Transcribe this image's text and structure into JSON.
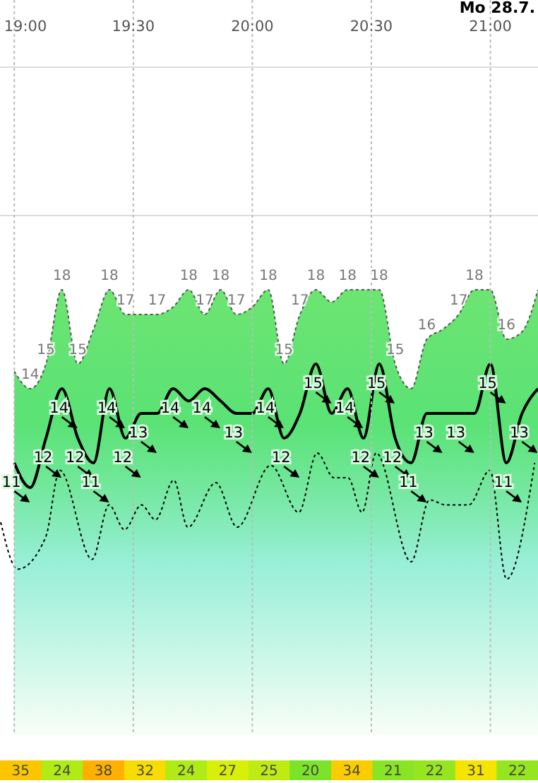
{
  "chart_data": [
    {
      "type": "area",
      "annotations": [
        "Mo 28.7."
      ],
      "xlim": [
        18.94,
        21.2
      ],
      "xticks": [
        {
          "value": 19,
          "label": "19:00"
        },
        {
          "value": 19.5,
          "label": "19:30"
        },
        {
          "value": 20,
          "label": "20:00"
        },
        {
          "value": 20.5,
          "label": "20:30"
        },
        {
          "value": 21,
          "label": "21:00"
        }
      ],
      "yticks": [
        {
          "value": 21,
          "label": null
        },
        {
          "value": 27,
          "label": null
        }
      ],
      "grid": true,
      "tick_labels": "x",
      "series": [
        {
          "type": "area",
          "color": "#8ee86a",
          "line_style": "dotted",
          "x": [
            19,
            19.067,
            19.133,
            19.2,
            19.267,
            19.333,
            19.4,
            19.467,
            19.533,
            19.6,
            19.667,
            19.733,
            19.8,
            19.867,
            19.933,
            20,
            20.067,
            20.133,
            20.2,
            20.267,
            20.333,
            20.4,
            20.467,
            20.533,
            20.6,
            20.667,
            20.733,
            20.8,
            20.867,
            20.933,
            21,
            21.067,
            21.133,
            21.2
          ],
          "values": [
            14.7,
            14,
            15,
            18,
            15,
            16.4,
            18,
            17,
            17,
            17,
            17.3,
            18,
            17,
            18,
            17,
            17.3,
            18,
            15,
            17,
            18,
            17.5,
            18,
            18,
            18,
            15,
            14,
            16,
            16.4,
            17,
            18,
            18,
            16,
            16.3,
            18
          ],
          "value_labels": [
            null,
            "14",
            "15",
            "18",
            "15",
            null,
            "18",
            "17",
            null,
            "17",
            null,
            "18",
            "17",
            "18",
            "17",
            null,
            "18",
            "15",
            "17",
            "18",
            null,
            "18",
            null,
            "18",
            "15",
            null,
            "16",
            null,
            "17",
            "18",
            null,
            "16",
            null,
            null
          ]
        },
        {
          "type": "line",
          "color": "#000000",
          "line_style": "solid",
          "x": [
            19,
            19.067,
            19.133,
            19.2,
            19.267,
            19.333,
            19.4,
            19.467,
            19.533,
            19.6,
            19.667,
            19.733,
            19.8,
            19.867,
            19.933,
            20,
            20.067,
            20.133,
            20.2,
            20.267,
            20.333,
            20.4,
            20.467,
            20.533,
            20.6,
            20.667,
            20.733,
            20.8,
            20.867,
            20.933,
            21,
            21.067,
            21.133,
            21.2
          ],
          "values": [
            11,
            10,
            12,
            14,
            12,
            11,
            14,
            12,
            13,
            13,
            14,
            13.5,
            14,
            13.5,
            13,
            13,
            14,
            12,
            13,
            15,
            13,
            14,
            12,
            15,
            12,
            11,
            13,
            13,
            13,
            13,
            15,
            11,
            13,
            14
          ],
          "value_labels": [
            "11",
            null,
            "12",
            "14",
            "12",
            "11",
            "14",
            "12",
            "13",
            null,
            "14",
            null,
            "14",
            null,
            "13",
            null,
            "14",
            "12",
            null,
            "15",
            null,
            "14",
            "12",
            "15",
            "12",
            "11",
            "13",
            null,
            "13",
            null,
            "15",
            "11",
            "13",
            null
          ]
        },
        {
          "type": "line",
          "color": "#000000",
          "line_style": "dotted",
          "x": [
            18.943,
            19.014,
            19.132,
            19.191,
            19.327,
            19.398,
            19.463,
            19.534,
            19.593,
            19.67,
            19.729,
            19.847,
            19.936,
            20.077,
            20.195,
            20.272,
            20.343,
            20.402,
            20.461,
            20.52,
            20.667,
            20.744,
            20.815,
            20.909,
            20.998,
            21.068,
            21.186
          ],
          "values": [
            8.6,
            6.7,
            8,
            10.7,
            7.1,
            9.3,
            8.3,
            9.3,
            8.7,
            10.3,
            8.4,
            10.2,
            8.4,
            10.9,
            9,
            11.4,
            10.4,
            10.4,
            9,
            11.4,
            7,
            9.5,
            9.3,
            9.3,
            10.7,
            6.3,
            11
          ]
        }
      ]
    },
    {
      "type": "heatmap",
      "data_labels": true,
      "categories": [
        null,
        null,
        null,
        null,
        null,
        null,
        null,
        null,
        null,
        null,
        null,
        null,
        null
      ],
      "y_categories": [
        null
      ],
      "cells": [
        [
          35,
          24,
          38,
          32,
          24,
          27,
          25,
          20,
          34,
          21,
          22,
          31,
          22
        ]
      ]
    }
  ]
}
